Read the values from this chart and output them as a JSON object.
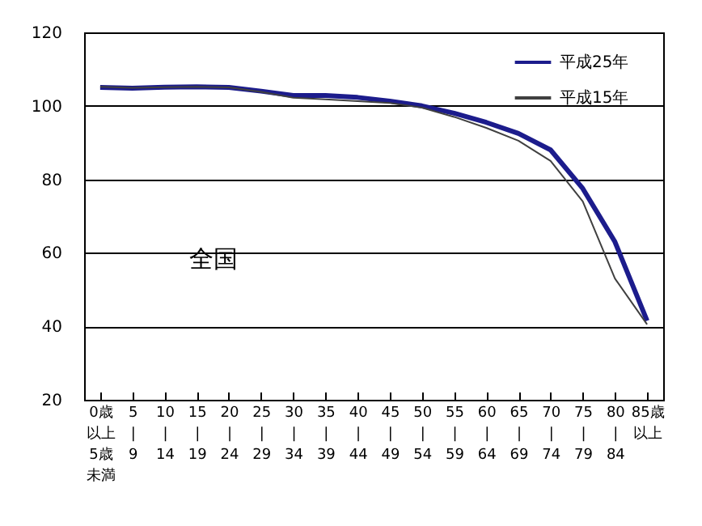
{
  "chart_data": {
    "type": "line",
    "categories": [
      "0歳以上5歳未満",
      "5\n|\n9",
      "10\n|\n14",
      "15\n|\n19",
      "20\n|\n24",
      "25\n|\n29",
      "30\n|\n34",
      "35\n|\n39",
      "40\n|\n44",
      "45\n|\n49",
      "50\n|\n54",
      "55\n|\n59",
      "60\n|\n64",
      "65\n|\n69",
      "70\n|\n74",
      "75\n|\n79",
      "80\n|\n84",
      "85歳以上"
    ],
    "series": [
      {
        "name": "平成25年",
        "color": "#1c1c8c",
        "values": [
          105,
          104.8,
          105.1,
          105.2,
          105,
          104,
          102.8,
          102.8,
          102.3,
          101.3,
          100,
          98,
          95.5,
          92.5,
          88,
          77.5,
          63,
          41.5
        ]
      },
      {
        "name": "平成15年",
        "color": "#404040",
        "values": [
          105.2,
          104.9,
          105.1,
          105.2,
          105,
          103.8,
          102.2,
          101.8,
          101.3,
          100.8,
          99.5,
          97,
          94,
          90.5,
          85,
          74,
          53,
          40.5
        ]
      }
    ],
    "ylim": [
      20,
      120
    ],
    "yticks": [
      20,
      40,
      60,
      80,
      100,
      120
    ],
    "grid": "y",
    "legend": "top right",
    "annotations": [
      "全国"
    ]
  }
}
